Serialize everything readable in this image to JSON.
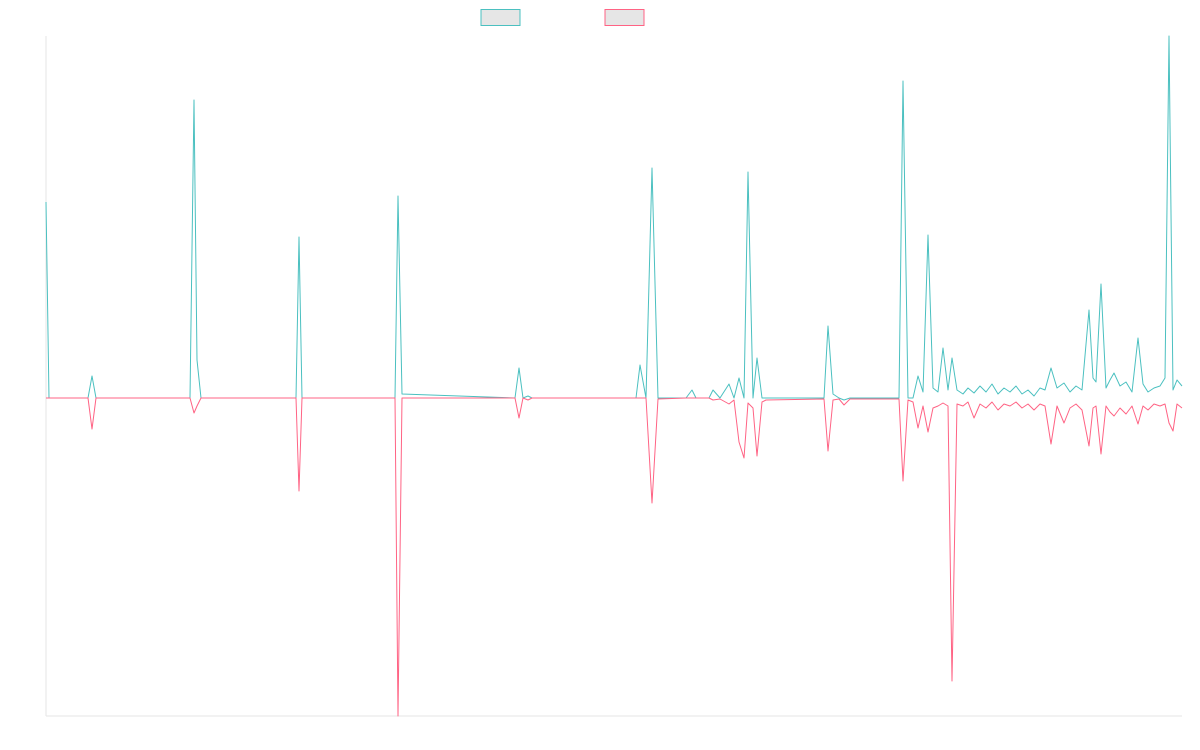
{
  "chart_data": {
    "type": "line",
    "x": [
      0,
      3,
      42,
      46,
      50,
      144,
      148,
      151,
      155,
      250,
      253,
      256,
      349,
      352,
      356,
      469,
      473,
      477,
      482,
      486,
      590,
      594,
      600,
      606,
      612,
      640,
      646,
      650,
      663,
      667,
      674,
      683,
      688,
      693,
      698,
      702,
      707,
      711,
      716,
      720,
      778,
      782,
      787,
      793,
      798,
      804,
      853,
      857,
      862,
      867,
      872,
      877,
      882,
      887,
      892,
      897,
      902,
      906,
      911,
      917,
      922,
      928,
      934,
      940,
      946,
      952,
      958,
      964,
      970,
      976,
      982,
      988,
      994,
      999,
      1005,
      1011,
      1018,
      1024,
      1030,
      1036,
      1043,
      1047,
      1050,
      1055,
      1060,
      1064,
      1068,
      1074,
      1080,
      1086,
      1092,
      1097,
      1102,
      1108,
      1114,
      1119,
      1123,
      1127,
      1131,
      1136
    ],
    "series": [
      {
        "color": "#4bc0c0",
        "values": [
          196,
          0,
          0,
          22,
          0,
          0,
          298,
          38,
          0,
          0,
          161,
          0,
          0,
          202,
          4,
          0,
          30,
          0,
          2,
          0,
          0,
          33,
          0,
          230,
          0,
          0,
          8,
          0,
          0,
          8,
          0,
          14,
          0,
          20,
          0,
          226,
          0,
          40,
          0,
          0,
          0,
          72,
          4,
          0,
          -2,
          0,
          0,
          317,
          0,
          0,
          22,
          6,
          163,
          10,
          6,
          50,
          8,
          40,
          8,
          4,
          10,
          5,
          12,
          6,
          14,
          4,
          10,
          6,
          12,
          4,
          8,
          2,
          10,
          8,
          30,
          10,
          15,
          6,
          12,
          8,
          88,
          20,
          16,
          114,
          10,
          18,
          25,
          12,
          16,
          6,
          60,
          14,
          6,
          10,
          12,
          20,
          362,
          8,
          18,
          12
        ]
      },
      {
        "color": "#ff6384",
        "values": [
          0,
          0,
          0,
          -31,
          0,
          0,
          -15,
          -8,
          0,
          0,
          -93,
          0,
          0,
          -318,
          0,
          0,
          -20,
          0,
          -2,
          0,
          0,
          0,
          0,
          -105,
          -1,
          0,
          0,
          0,
          0,
          -2,
          -1,
          -6,
          -2,
          -44,
          -60,
          -5,
          -10,
          -58,
          -4,
          -2,
          -1,
          -53,
          -2,
          -1,
          -7,
          -1,
          -1,
          -83,
          -2,
          -4,
          -30,
          -8,
          -34,
          -10,
          -8,
          -5,
          -8,
          -283,
          -6,
          -8,
          -4,
          -20,
          -6,
          -10,
          -4,
          -12,
          -6,
          -8,
          -4,
          -10,
          -6,
          -12,
          -6,
          -8,
          -46,
          -8,
          -25,
          -10,
          -6,
          -12,
          -48,
          -10,
          -8,
          -56,
          -8,
          -14,
          -18,
          -10,
          -16,
          -8,
          -26,
          -8,
          -12,
          -6,
          -8,
          -6,
          -25,
          -33,
          -6,
          -10
        ]
      }
    ],
    "xlim": [
      0,
      1136
    ],
    "ylim": [
      -318,
      362
    ]
  }
}
